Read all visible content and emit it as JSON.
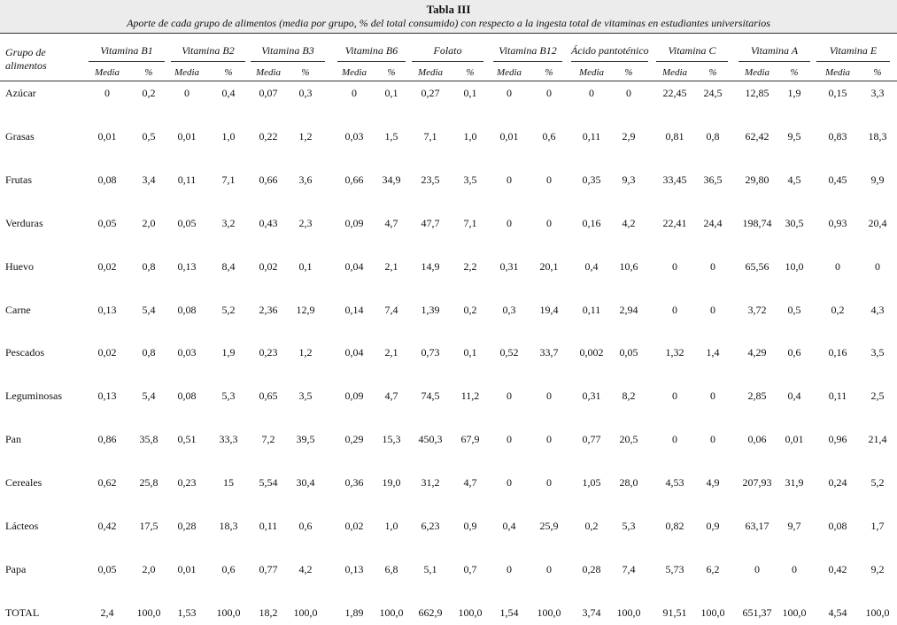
{
  "title": "Tabla III",
  "subtitle": "Aporte de cada grupo de alimentos (media por grupo, % del total consumido) con respecto a la ingesta total de vitaminas en estudiantes universitarios",
  "group_header": "Grupo de alimentos",
  "subheaders": {
    "media": "Media",
    "pct": "%"
  },
  "vitamins": [
    "Vitamina B1",
    "Vitamina B2",
    "Vitamina B3",
    "Vitamina B6",
    "Folato",
    "Vitamina B12",
    "Ácido pantoténico",
    "Vitamina C",
    "Vitamina A",
    "Vitamina E"
  ],
  "rows": [
    {
      "label": "Azúcar",
      "values": [
        "0",
        "0,2",
        "0",
        "0,4",
        "0,07",
        "0,3",
        "0",
        "0,1",
        "0,27",
        "0,1",
        "0",
        "0",
        "0",
        "0",
        "22,45",
        "24,5",
        "12,85",
        "1,9",
        "0,15",
        "3,3"
      ]
    },
    {
      "label": "Grasas",
      "values": [
        "0,01",
        "0,5",
        "0,01",
        "1,0",
        "0,22",
        "1,2",
        "0,03",
        "1,5",
        "7,1",
        "1,0",
        "0,01",
        "0,6",
        "0,11",
        "2,9",
        "0,81",
        "0,8",
        "62,42",
        "9,5",
        "0,83",
        "18,3"
      ]
    },
    {
      "label": "Frutas",
      "values": [
        "0,08",
        "3,4",
        "0,11",
        "7,1",
        "0,66",
        "3,6",
        "0,66",
        "34,9",
        "23,5",
        "3,5",
        "0",
        "0",
        "0,35",
        "9,3",
        "33,45",
        "36,5",
        "29,80",
        "4,5",
        "0,45",
        "9,9"
      ]
    },
    {
      "label": "Verduras",
      "values": [
        "0,05",
        "2,0",
        "0,05",
        "3,2",
        "0,43",
        "2,3",
        "0,09",
        "4,7",
        "47,7",
        "7,1",
        "0",
        "0",
        "0,16",
        "4,2",
        "22,41",
        "24,4",
        "198,74",
        "30,5",
        "0,93",
        "20,4"
      ]
    },
    {
      "label": "Huevo",
      "values": [
        "0,02",
        "0,8",
        "0,13",
        "8,4",
        "0,02",
        "0,1",
        "0,04",
        "2,1",
        "14,9",
        "2,2",
        "0,31",
        "20,1",
        "0,4",
        "10,6",
        "0",
        "0",
        "65,56",
        "10,0",
        "0",
        "0"
      ]
    },
    {
      "label": "Carne",
      "values": [
        "0,13",
        "5,4",
        "0,08",
        "5,2",
        "2,36",
        "12,9",
        "0,14",
        "7,4",
        "1,39",
        "0,2",
        "0,3",
        "19,4",
        "0,11",
        "2,94",
        "0",
        "0",
        "3,72",
        "0,5",
        "0,2",
        "4,3"
      ]
    },
    {
      "label": "Pescados",
      "values": [
        "0,02",
        "0,8",
        "0,03",
        "1,9",
        "0,23",
        "1,2",
        "0,04",
        "2,1",
        "0,73",
        "0,1",
        "0,52",
        "33,7",
        "0,002",
        "0,05",
        "1,32",
        "1,4",
        "4,29",
        "0,6",
        "0,16",
        "3,5"
      ]
    },
    {
      "label": "Leguminosas",
      "values": [
        "0,13",
        "5,4",
        "0,08",
        "5,3",
        "0,65",
        "3,5",
        "0,09",
        "4,7",
        "74,5",
        "11,2",
        "0",
        "0",
        "0,31",
        "8,2",
        "0",
        "0",
        "2,85",
        "0,4",
        "0,11",
        "2,5"
      ]
    },
    {
      "label": "Pan",
      "values": [
        "0,86",
        "35,8",
        "0,51",
        "33,3",
        "7,2",
        "39,5",
        "0,29",
        "15,3",
        "450,3",
        "67,9",
        "0",
        "0",
        "0,77",
        "20,5",
        "0",
        "0",
        "0,06",
        "0,01",
        "0,96",
        "21,4"
      ]
    },
    {
      "label": "Cereales",
      "values": [
        "0,62",
        "25,8",
        "0,23",
        "15",
        "5,54",
        "30,4",
        "0,36",
        "19,0",
        "31,2",
        "4,7",
        "0",
        "0",
        "1,05",
        "28,0",
        "4,53",
        "4,9",
        "207,93",
        "31,9",
        "0,24",
        "5,2"
      ]
    },
    {
      "label": "Lácteos",
      "values": [
        "0,42",
        "17,5",
        "0,28",
        "18,3",
        "0,11",
        "0,6",
        "0,02",
        "1,0",
        "6,23",
        "0,9",
        "0,4",
        "25,9",
        "0,2",
        "5,3",
        "0,82",
        "0,9",
        "63,17",
        "9,7",
        "0,08",
        "1,7"
      ]
    },
    {
      "label": "Papa",
      "values": [
        "0,05",
        "2,0",
        "0,01",
        "0,6",
        "0,77",
        "4,2",
        "0,13",
        "6,8",
        "5,1",
        "0,7",
        "0",
        "0",
        "0,28",
        "7,4",
        "5,73",
        "6,2",
        "0",
        "0",
        "0,42",
        "9,2"
      ]
    },
    {
      "label": "TOTAL",
      "values": [
        "2,4",
        "100,0",
        "1,53",
        "100,0",
        "18,2",
        "100,0",
        "1,89",
        "100,0",
        "662,9",
        "100,0",
        "1,54",
        "100,0",
        "3,74",
        "100,0",
        "91,51",
        "100,0",
        "651,37",
        "100,0",
        "4,54",
        "100,0"
      ]
    }
  ]
}
